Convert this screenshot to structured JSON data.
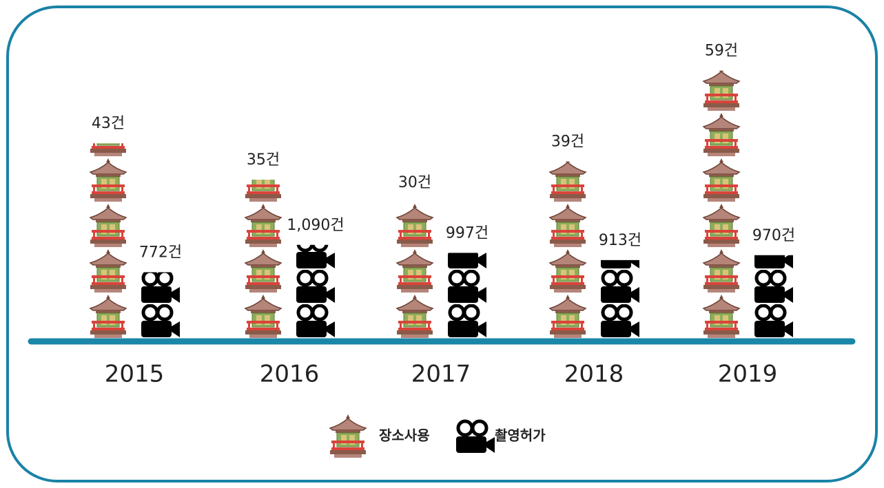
{
  "chart_data": {
    "type": "pictogram",
    "categories": [
      "2015",
      "2016",
      "2017",
      "2018",
      "2019"
    ],
    "series": [
      {
        "name": "장소사용",
        "values": [
          43,
          35,
          30,
          39,
          59
        ],
        "value_labels": [
          "43건",
          "35건",
          "30건",
          "39건",
          "59건"
        ]
      },
      {
        "name": "촬영허가",
        "values": [
          772,
          1090,
          997,
          913,
          970
        ],
        "value_labels": [
          "772건",
          "1,090건",
          "997건",
          "913건",
          "970건"
        ]
      }
    ]
  }
}
